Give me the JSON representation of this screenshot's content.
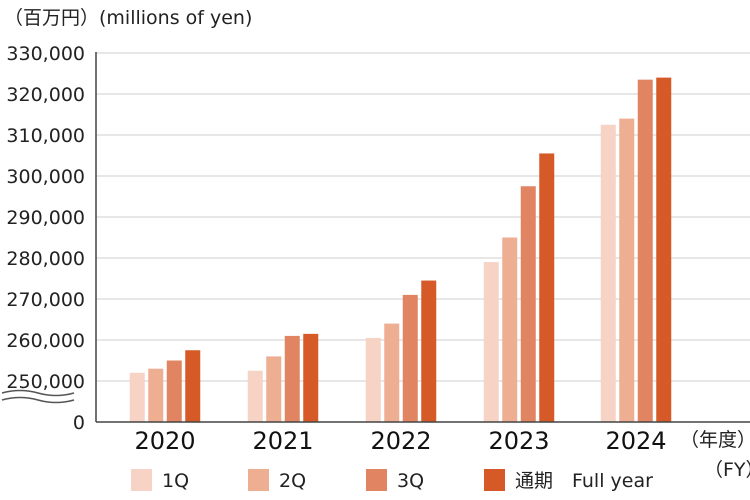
{
  "chart_data": {
    "type": "bar",
    "ylabel": "（百万円）(millions of yen)",
    "xlabel_jp": "（年度）",
    "xlabel_en": "（FY）",
    "categories": [
      "2020",
      "2021",
      "2022",
      "2023",
      "2024"
    ],
    "ylim": [
      250000,
      330000
    ],
    "yticks": [
      "0",
      "250,000",
      "260,000",
      "270,000",
      "280,000",
      "290,000",
      "300,000",
      "310,000",
      "320,000",
      "330,000"
    ],
    "axis_break": true,
    "grid": true,
    "legend_position": "bottom",
    "series": [
      {
        "name": "1Q",
        "color": "#F6D3C4",
        "values": [
          252000,
          252500,
          260500,
          279000,
          312500
        ]
      },
      {
        "name": "2Q",
        "color": "#EDAE91",
        "values": [
          253000,
          256000,
          264000,
          285000,
          314000
        ]
      },
      {
        "name": "3Q",
        "color": "#E08462",
        "values": [
          255000,
          261000,
          271000,
          297500,
          323500
        ]
      },
      {
        "name": "通期　Full year",
        "color": "#D65A27",
        "values": [
          257500,
          261500,
          274500,
          305500,
          324000
        ]
      }
    ]
  }
}
